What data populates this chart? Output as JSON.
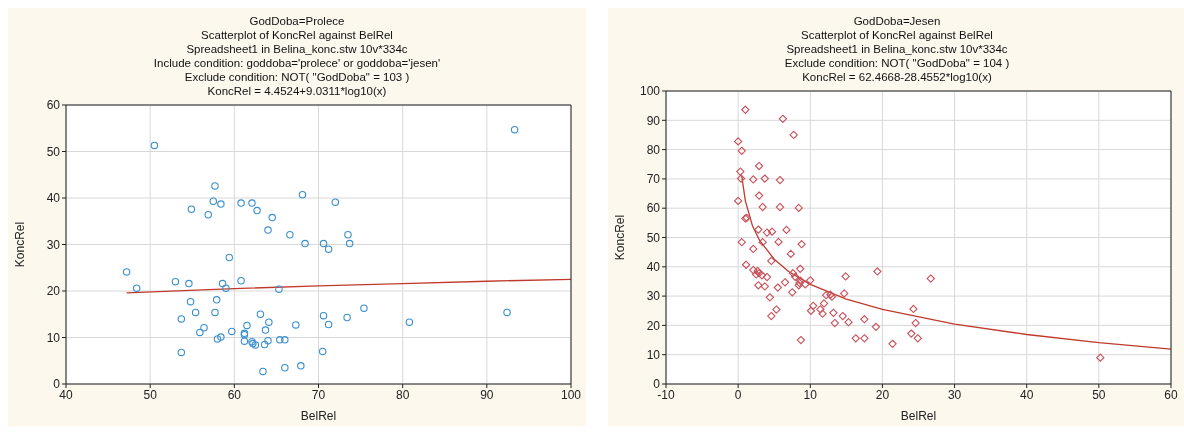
{
  "chart_data": [
    {
      "type": "scatter",
      "title": "GodDoba=Prolece",
      "subtitle": "Scatterplot of KoncRel against BelRel\nSpreadsheet1 in Belina_konc.stw 10v*334c\nInclude condition: goddoba='prolece' or goddoba='jesen'\nExclude condition: NOT( \"GodDoba\" = 103 )\nKoncRel = 4.4524+9.0311*log10(x)",
      "xlabel": "BelRel",
      "ylabel": "KoncRel",
      "xlim": [
        40,
        100
      ],
      "xticks": [
        40,
        50,
        60,
        70,
        80,
        90,
        100
      ],
      "ylim": [
        0,
        60
      ],
      "yticks": [
        0,
        10,
        20,
        30,
        40,
        50,
        60
      ],
      "grid": true,
      "series": [
        {
          "marker": "circle",
          "color": "#3a8fd0",
          "x": [
            47.2,
            48.4,
            50.5,
            53.0,
            54.6,
            53.7,
            53.7,
            54.8,
            54.9,
            55.4,
            56.4,
            55.9,
            56.9,
            57.5,
            57.7,
            58.4,
            57.7,
            57.9,
            58.0,
            58.4,
            58.6,
            59.0,
            59.4,
            59.7,
            60.8,
            60.8,
            61.2,
            61.2,
            61.2,
            61.5,
            62.1,
            62.1,
            62.2,
            62.5,
            62.7,
            63.1,
            63.4,
            63.6,
            63.7,
            64.0,
            64.1,
            64.0,
            64.5,
            65.3,
            65.4,
            66.0,
            66.0,
            66.6,
            67.3,
            67.9,
            68.1,
            68.4,
            70.6,
            71.2,
            72.0,
            73.5,
            73.7,
            70.6,
            71.2,
            73.4,
            75.4,
            70.5,
            80.8,
            92.4,
            93.3
          ],
          "values": [
            24.1,
            20.6,
            51.3,
            22.0,
            21.6,
            14.0,
            6.8,
            17.7,
            37.6,
            15.4,
            12.1,
            11.1,
            36.4,
            39.3,
            42.6,
            38.7,
            15.4,
            18.1,
            9.7,
            10.1,
            21.6,
            20.6,
            27.2,
            11.3,
            22.2,
            38.9,
            10.9,
            10.6,
            9.2,
            12.6,
            38.9,
            9.1,
            8.7,
            8.4,
            37.3,
            15.0,
            2.7,
            8.5,
            11.6,
            33.1,
            13.3,
            9.3,
            35.8,
            20.4,
            9.5,
            9.5,
            3.5,
            32.1,
            12.7,
            3.9,
            40.7,
            30.2,
            30.2,
            29.0,
            39.1,
            32.1,
            30.2,
            14.7,
            12.8,
            14.3,
            16.3,
            7.0,
            13.3,
            15.4,
            54.7
          ]
        },
        {
          "type": "line",
          "marker": "none",
          "color": "#c0392b",
          "x": [
            47.2,
            60,
            70,
            80,
            90,
            100
          ],
          "values": [
            19.6,
            20.5,
            21.1,
            21.6,
            22.1,
            22.5
          ]
        }
      ]
    },
    {
      "type": "scatter",
      "title": "GodDoba=Jesen",
      "subtitle": "Scatterplot of KoncRel against BelRel\nSpreadsheet1 in Belina_konc.stw 10v*334c\nExclude condition: NOT( \"GodDoba\" = 104 )\nKoncRel = 62.4668-28.4552*log10(x)",
      "xlabel": "BelRel",
      "ylabel": "KoncRel",
      "xlim": [
        -10,
        60
      ],
      "xticks": [
        -10,
        0,
        10,
        20,
        30,
        40,
        50,
        60
      ],
      "ylim": [
        0,
        100
      ],
      "yticks": [
        0,
        10,
        20,
        30,
        40,
        50,
        60,
        70,
        80,
        90,
        100
      ],
      "grid": true,
      "series": [
        {
          "marker": "diamond",
          "color": "#c8505a",
          "x": [
            0.0,
            0.5,
            0.3,
            0.4,
            0.0,
            1.0,
            1.0,
            1.2,
            0.5,
            1.1,
            2.1,
            2.1,
            2.9,
            2.9,
            2.8,
            3.4,
            3.4,
            3.7,
            4.0,
            4.7,
            2.1,
            2.7,
            2.9,
            2.5,
            3.3,
            4.0,
            2.8,
            3.7,
            4.4,
            4.6,
            4.6,
            5.3,
            5.5,
            5.6,
            5.8,
            5.8,
            6.2,
            6.5,
            6.7,
            7.3,
            7.5,
            7.6,
            7.7,
            7.9,
            8.4,
            8.5,
            8.6,
            8.4,
            8.6,
            8.8,
            8.7,
            9.3,
            10.0,
            10.1,
            10.4,
            11.4,
            11.7,
            11.9,
            12.2,
            12.8,
            13.0,
            13.2,
            13.4,
            14.5,
            14.7,
            14.9,
            15.3,
            16.3,
            17.5,
            17.5,
            19.1,
            19.3,
            21.4,
            26.7,
            24.3,
            24.6,
            24.0,
            24.9,
            50.2
          ],
          "values": [
            82.8,
            79.6,
            72.5,
            70.1,
            62.5,
            93.6,
            56.5,
            56.7,
            48.4,
            40.7,
            46.1,
            69.8,
            74.4,
            64.3,
            52.7,
            60.4,
            48.4,
            70.1,
            51.7,
            52.0,
            38.9,
            38.6,
            37.8,
            37.4,
            37.1,
            36.5,
            33.7,
            33.3,
            29.6,
            23.2,
            42.0,
            25.4,
            32.9,
            48.5,
            69.6,
            60.4,
            90.5,
            34.7,
            52.6,
            44.4,
            31.3,
            37.8,
            85.0,
            36.6,
            33.7,
            34.5,
            35.3,
            60.1,
            39.3,
            47.7,
            15.0,
            34.0,
            35.4,
            25.0,
            26.7,
            25.5,
            24.0,
            27.5,
            30.3,
            30.5,
            29.8,
            24.3,
            20.8,
            23.2,
            30.9,
            36.7,
            21.1,
            15.6,
            15.6,
            22.1,
            19.5,
            38.4,
            13.7,
            36.0,
            25.6,
            20.8,
            17.2,
            15.6,
            9.0
          ]
        },
        {
          "type": "line",
          "marker": "none",
          "color": "#c0392b",
          "x": [
            0.5,
            1,
            2,
            3,
            5,
            7,
            10,
            15,
            20,
            30,
            40,
            50,
            60
          ],
          "values": [
            71.0,
            62.5,
            53.9,
            48.9,
            42.6,
            38.4,
            34.0,
            29.0,
            25.5,
            20.4,
            16.9,
            14.1,
            11.9
          ]
        }
      ]
    }
  ]
}
